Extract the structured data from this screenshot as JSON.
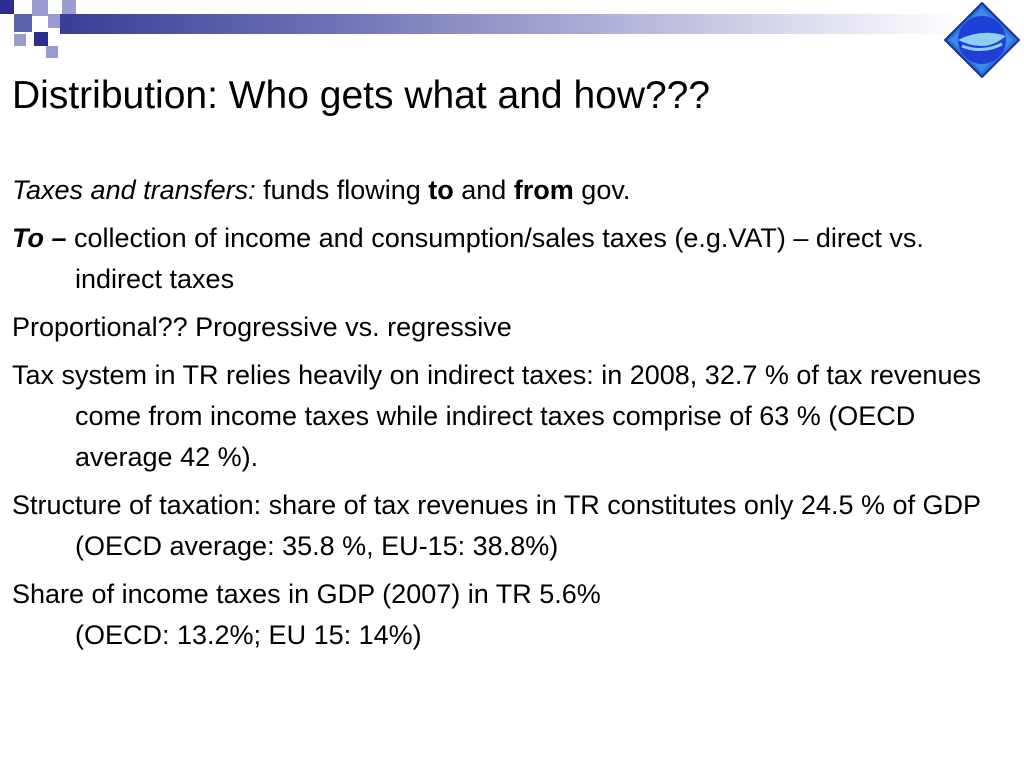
{
  "slide": {
    "title": "Distribution: Who gets what and how???",
    "para1": {
      "lead": "Taxes and transfers:",
      "t1": " funds flowing ",
      "bold1": "to",
      "t2": " and ",
      "bold2": "from",
      "t3": " gov."
    },
    "para2": {
      "lead": "To –",
      "text": " collection of income and consumption/sales taxes (e.g.VAT) – direct vs. indirect taxes"
    },
    "para3": "Proportional?? Progressive vs. regressive",
    "para4": "Tax system in TR relies heavily on indirect taxes: in 2008, 32.7 % of tax revenues come from income taxes while indirect taxes comprise of 63 % (OECD average 42 %).",
    "para5": "Structure of taxation: share of tax revenues in TR constitutes only 24.5 % of GDP (OECD average: 35.8 %, EU-15: 38.8%)",
    "para6": "Share of income taxes in GDP (2007) in TR 5.6%",
    "para7": "(OECD: 13.2%; EU 15: 14%)"
  },
  "colors": {
    "accent": "#2b2e8f",
    "logo_blue": "#1f3fd6",
    "logo_light": "#8fd0f2"
  },
  "icons": {
    "logo": "university-logo-icon",
    "decoration": "decorative-squares"
  }
}
